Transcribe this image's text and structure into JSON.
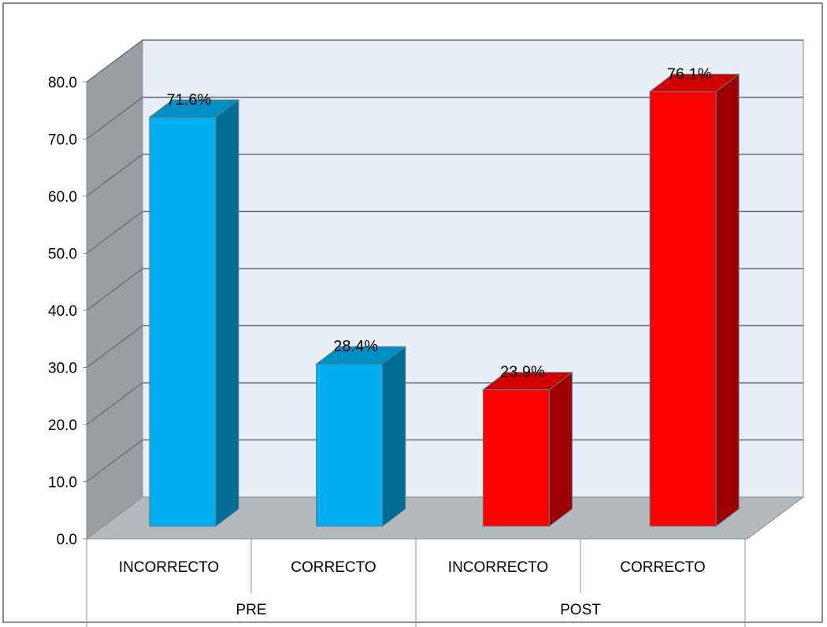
{
  "chart_data": {
    "type": "bar",
    "style": "3d-clustered-column",
    "groups": [
      "PRE",
      "POST"
    ],
    "categories": [
      "INCORRECTO",
      "CORRECTO",
      "INCORRECTO",
      "CORRECTO"
    ],
    "group_of_category": [
      0,
      0,
      1,
      1
    ],
    "values": [
      71.6,
      28.4,
      23.9,
      76.1
    ],
    "data_labels": [
      "71.6%",
      "28.4%",
      "23.9%",
      "76.1%"
    ],
    "bar_colors": [
      "#00b0f0",
      "#00b0f0",
      "#ff0000",
      "#ff0000"
    ],
    "ylim": [
      0,
      80
    ],
    "yticks": [
      "0.0",
      "10.0",
      "20.0",
      "30.0",
      "40.0",
      "50.0",
      "60.0",
      "70.0",
      "80.0"
    ],
    "grid": true,
    "legend": "none",
    "colors": {
      "back_wall": "#e9eff6",
      "side_wall": "#9a9da1",
      "floor": "#b5b8bc",
      "gridline": "#666f77"
    }
  }
}
